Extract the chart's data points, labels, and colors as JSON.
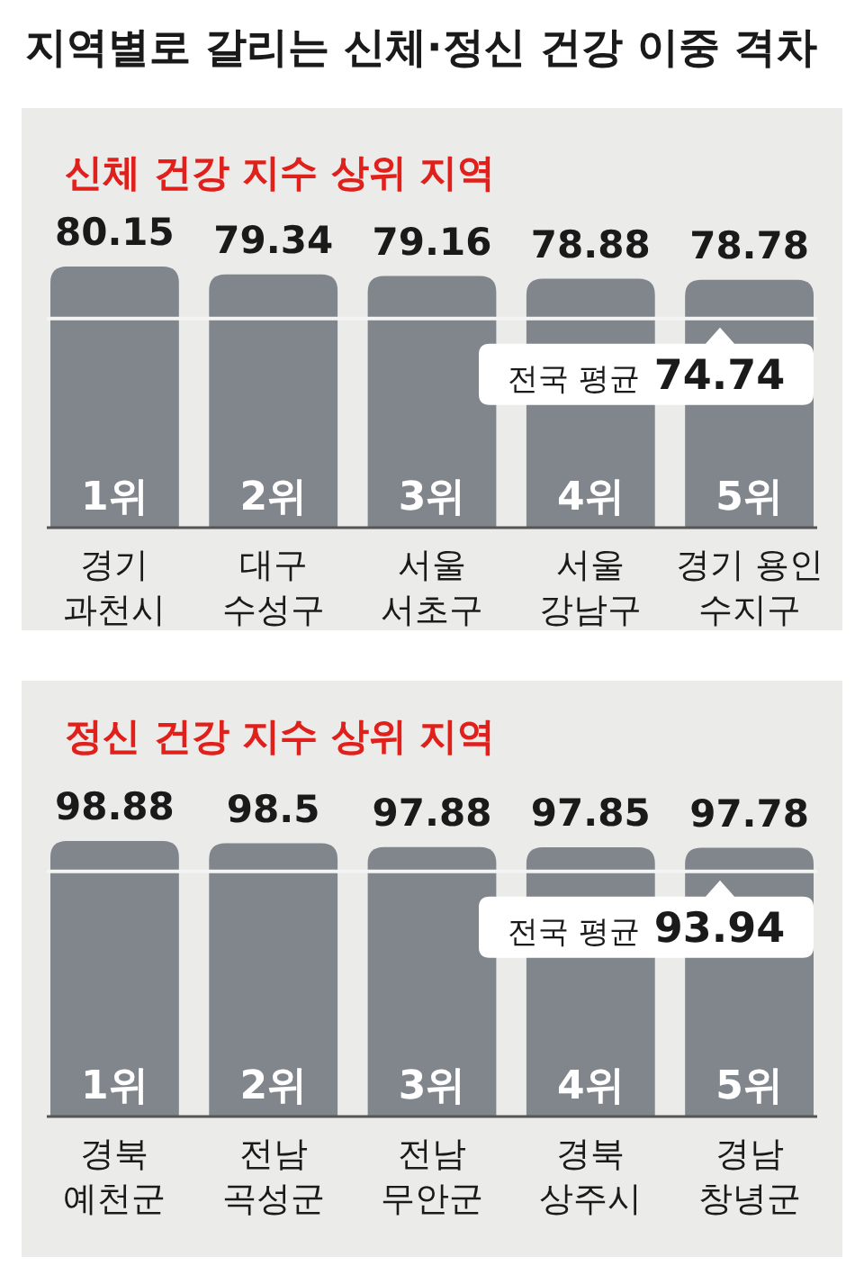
{
  "chart_data": [
    {
      "type": "bar",
      "title": "지역별로 갈리는 신체·정신 건강 이중 격차",
      "subtitle": "신체 건강 지수 상위 지역",
      "categories": [
        "경기 과천시",
        "대구 수성구",
        "서울 서초구",
        "서울 강남구",
        "경기 용인 수지구"
      ],
      "values": [
        80.15,
        79.34,
        79.16,
        78.88,
        78.78
      ],
      "color": "#80868c",
      "ylim": [
        53,
        80.15
      ],
      "data_labels": true,
      "ref_lines": [
        {
          "axis": "y",
          "value": 74.74,
          "label": "전국 평균 74.74",
          "color": "#f4f4f4"
        }
      ],
      "annotations": [
        "1위",
        "2위",
        "3위",
        "4위",
        "5위"
      ]
    },
    {
      "type": "bar",
      "subtitle": "정신 건강 지수 상위 지역",
      "categories": [
        "경북 예천군",
        "전남 곡성군",
        "전남 무안군",
        "경북 상주시",
        "경남 창녕군"
      ],
      "values": [
        98.88,
        98.5,
        97.88,
        97.85,
        97.78
      ],
      "color": "#80868c",
      "ylim": [
        54,
        98.88
      ],
      "data_labels": true,
      "ref_lines": [
        {
          "axis": "y",
          "value": 93.94,
          "label": "전국 평균 93.94",
          "color": "#f4f4f4"
        }
      ],
      "annotations": [
        "1위",
        "2위",
        "3위",
        "4위",
        "5위"
      ]
    }
  ]
}
